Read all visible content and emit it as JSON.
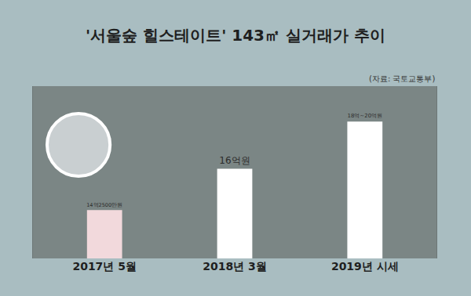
{
  "chart_data": {
    "type": "bar",
    "title": "'서울숲 힐스테이트' 143㎡ 실거래가 추이",
    "annotations": [
      "(자료: 국토교통부)"
    ],
    "categories": [
      "2017년 5월",
      "2018년 3월",
      "2019년 시세"
    ],
    "values": [
      14.25,
      16,
      18
    ],
    "value_labels": [
      "14억2500만원",
      "16억원",
      "18억~20억원"
    ],
    "colors": [
      "#f2d9dc",
      "#ffffff",
      "#ffffff"
    ],
    "ylim": [
      12.2,
      19.5
    ],
    "yticks": [],
    "tick_labels": "x",
    "data_labels": true,
    "grid": false
  }
}
